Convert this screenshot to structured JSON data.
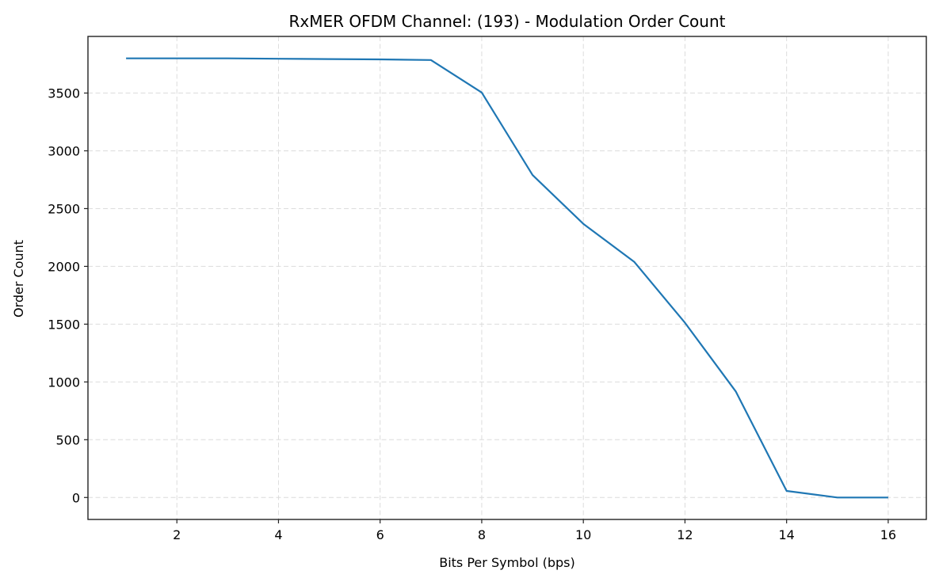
{
  "chart_data": {
    "type": "line",
    "title": "RxMER OFDM Channel: (193) - Modulation Order Count",
    "xlabel": "Bits Per Symbol (bps)",
    "ylabel": "Order Count",
    "x": [
      1,
      2,
      3,
      4,
      5,
      6,
      7,
      8,
      9,
      10,
      11,
      12,
      13,
      14,
      15,
      16
    ],
    "series": [
      {
        "name": "Order Count",
        "color": "#1f77b4",
        "values": [
          3800,
          3800,
          3800,
          3797,
          3794,
          3791,
          3786,
          3505,
          2790,
          2368,
          2040,
          1512,
          918,
          57,
          0,
          0
        ]
      }
    ],
    "xticks": [
      2,
      4,
      6,
      8,
      10,
      12,
      14,
      16
    ],
    "yticks": [
      0,
      500,
      1000,
      1500,
      2000,
      2500,
      3000,
      3500
    ],
    "xlim": [
      0.25,
      16.75
    ],
    "ylim": [
      -190,
      3990
    ],
    "grid": true,
    "grid_style": "dashed",
    "legend": null
  }
}
